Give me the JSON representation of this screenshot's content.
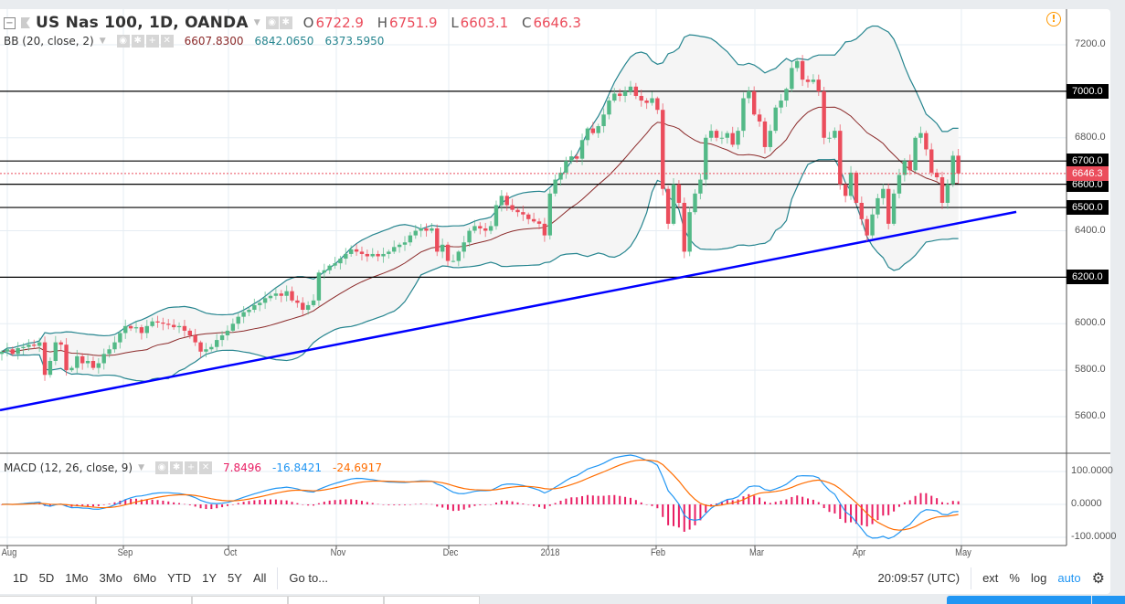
{
  "header": {
    "symbol": "US Nas 100, 1D, OANDA",
    "open_label": "O",
    "open": "6722.9",
    "high_label": "H",
    "high": "6751.9",
    "low_label": "L",
    "low": "6603.1",
    "close_label": "C",
    "close": "6646.3"
  },
  "bb_legend": {
    "label": "BB (20, close, 2)",
    "basis": "6607.8300",
    "upper": "6842.0650",
    "lower": "6373.5950"
  },
  "macd_legend": {
    "label": "MACD (12, 26, close, 9)",
    "hist": "7.8496",
    "macd": "-16.8421",
    "signal": "-24.6917"
  },
  "toolbar": {
    "ranges": [
      "1D",
      "5D",
      "1Mo",
      "3Mo",
      "6Mo",
      "YTD",
      "1Y",
      "5Y",
      "All"
    ],
    "goto": "Go to...",
    "time": "20:09:57 (UTC)",
    "ext": "ext",
    "percent": "%",
    "log": "log",
    "auto": "auto"
  },
  "colors": {
    "up": "#53b987",
    "down": "#eb4d5c",
    "bb_band": "#26858f",
    "bb_basis": "#8b2a2a",
    "trendline": "#0000ff",
    "macd": "#2196f3",
    "signal": "#ff6d00",
    "hist": "#e91e63",
    "accent": "#2196f3",
    "alert": "#ff9800"
  },
  "icons": [
    "collapse-icon",
    "flag-icon",
    "eye-icon",
    "gear-icon",
    "plus-icon",
    "close-icon",
    "alert-icon",
    "settings-gear-icon"
  ],
  "chart_data": {
    "type": "candlestick",
    "title": "US Nas 100, 1D, OANDA",
    "ylim": [
      5450,
      7300
    ],
    "yticks": [
      "7200.0",
      "6800.0",
      "6400.0",
      "6000.0",
      "5800.0",
      "5600.0"
    ],
    "ytick_values": [
      7200,
      6800,
      6400,
      6000,
      5800,
      5600
    ],
    "horizontal_levels": [
      {
        "value": 7000,
        "label": "7000.0"
      },
      {
        "value": 6700,
        "label": "6700.0"
      },
      {
        "value": 6600,
        "label": "6600.0"
      },
      {
        "value": 6500,
        "label": "6500.0"
      },
      {
        "value": 6200,
        "label": "6200.0"
      }
    ],
    "last_price": {
      "value": 6646.3,
      "label": "6646.3"
    },
    "xticks": [
      "Aug",
      "Sep",
      "Oct",
      "Nov",
      "Dec",
      "2018",
      "Feb",
      "Mar",
      "Apr",
      "May"
    ],
    "trendline": {
      "from": 5628,
      "to": 6481
    },
    "macd_yticks": [
      "100.0000",
      "0.0000",
      "-100.0000"
    ],
    "macd_ytick_values": [
      100,
      0,
      -100
    ],
    "last_bar": {
      "open": 6722.9,
      "high": 6751.9,
      "low": 6603.1,
      "close": 6646.3
    },
    "close": [
      5880,
      5890,
      5870,
      5895,
      5900,
      5910,
      5905,
      5920,
      5780,
      5840,
      5920,
      5910,
      5800,
      5810,
      5860,
      5830,
      5840,
      5810,
      5830,
      5870,
      5890,
      5920,
      5960,
      5990,
      5980,
      5985,
      5960,
      5990,
      6010,
      6005,
      6000,
      5995,
      5985,
      5990,
      5970,
      5950,
      5920,
      5880,
      5890,
      5900,
      5930,
      5950,
      5970,
      6000,
      6030,
      6050,
      6060,
      6080,
      6090,
      6110,
      6120,
      6130,
      6120,
      6140,
      6100,
      6090,
      6060,
      6080,
      6100,
      6220,
      6230,
      6250,
      6260,
      6280,
      6300,
      6320,
      6310,
      6300,
      6290,
      6300,
      6290,
      6300,
      6310,
      6330,
      6340,
      6350,
      6380,
      6400,
      6410,
      6400,
      6410,
      6310,
      6340,
      6270,
      6270,
      6310,
      6350,
      6400,
      6420,
      6410,
      6400,
      6420,
      6510,
      6550,
      6510,
      6490,
      6480,
      6470,
      6450,
      6440,
      6430,
      6380,
      6560,
      6620,
      6650,
      6700,
      6720,
      6710,
      6790,
      6840,
      6820,
      6850,
      6900,
      6960,
      6990,
      6980,
      7000,
      7020,
      6980,
      6960,
      6950,
      6970,
      6920,
      6580,
      6430,
      6600,
      6520,
      6310,
      6480,
      6560,
      6620,
      6800,
      6830,
      6800,
      6800,
      6820,
      6770,
      6830,
      6970,
      7000,
      6900,
      6870,
      6760,
      6830,
      6930,
      6960,
      7010,
      7100,
      7130,
      7050,
      7040,
      7050,
      7000,
      6800,
      6800,
      6830,
      6600,
      6550,
      6650,
      6520,
      6450,
      6380,
      6470,
      6540,
      6580,
      6430,
      6560,
      6640,
      6700,
      6660,
      6800,
      6820,
      6750,
      6650,
      6630,
      6520,
      6600,
      6722.9,
      6646.3
    ]
  }
}
